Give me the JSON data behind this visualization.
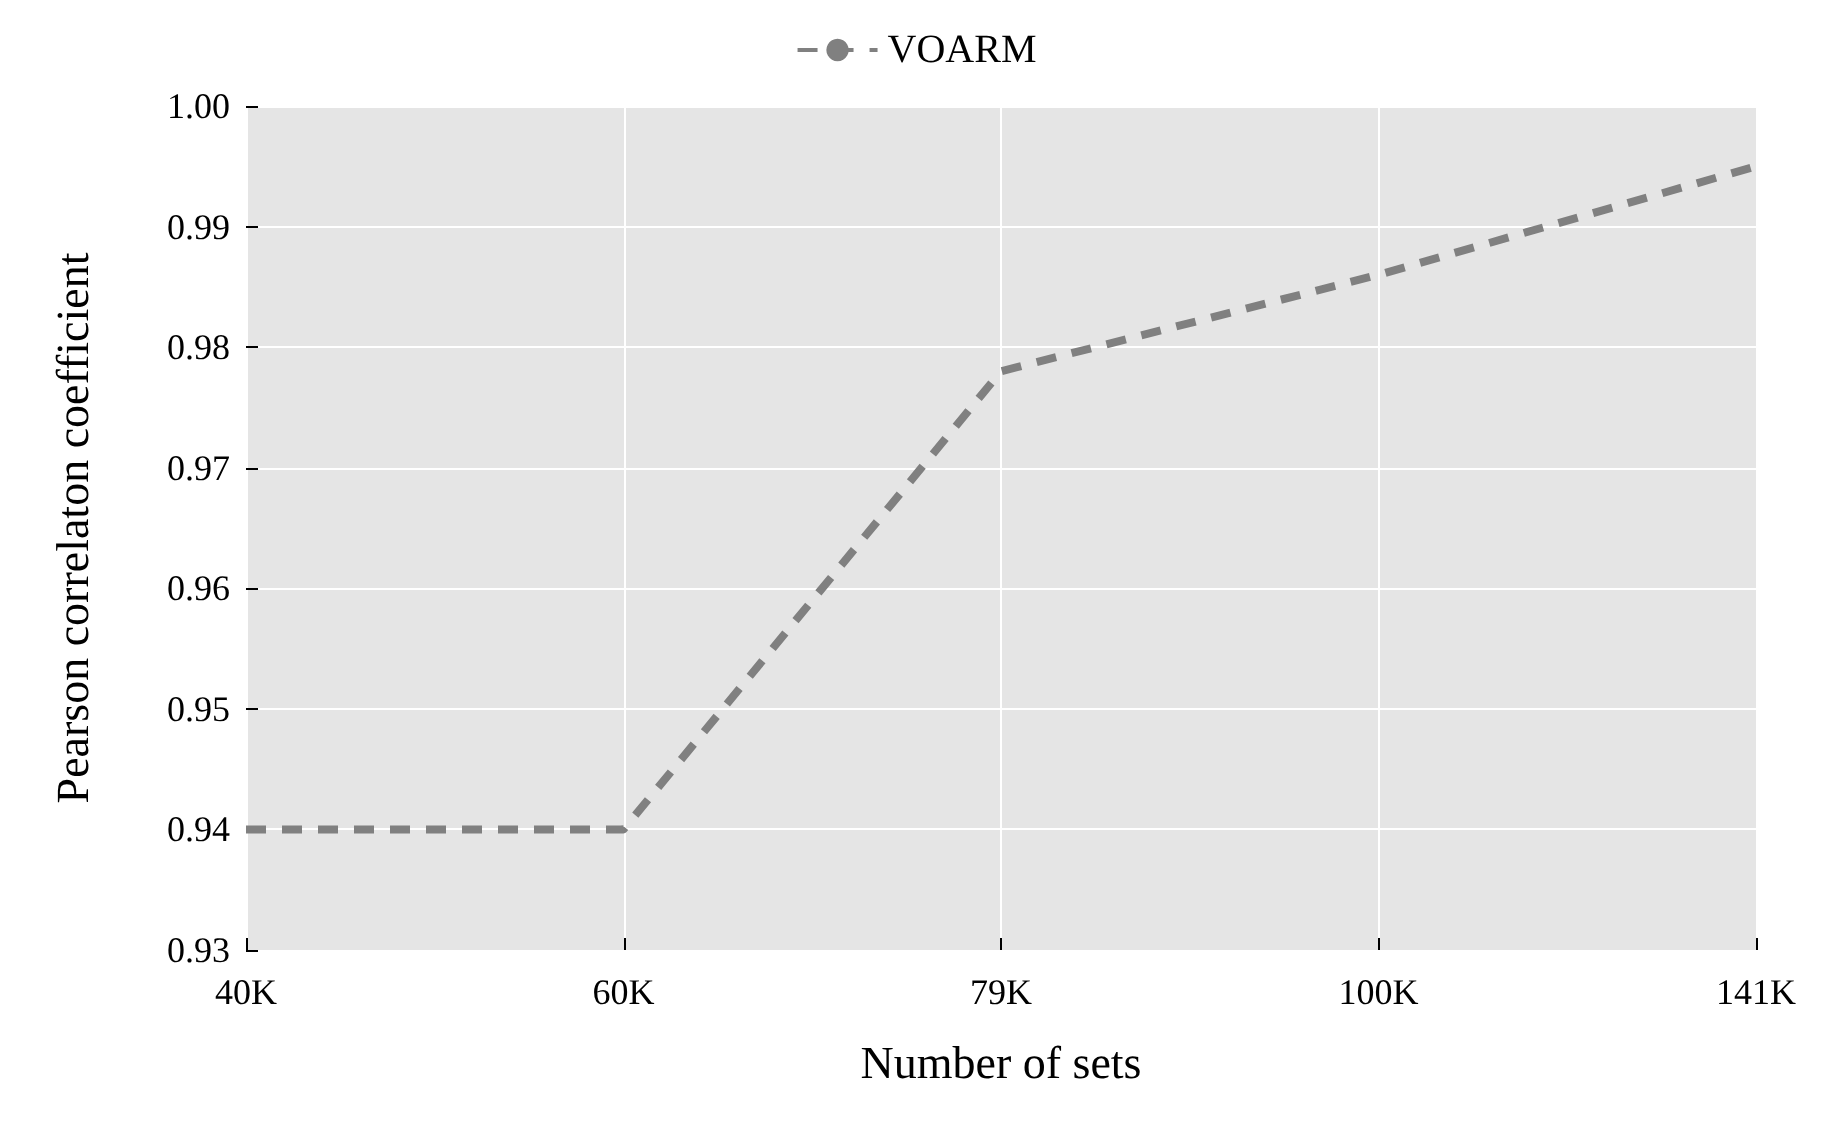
{
  "chart_data": {
    "type": "line",
    "xlabel": "Number of sets",
    "ylabel": "Pearson correlaton coefficient",
    "categories": [
      "40K",
      "60K",
      "79K",
      "100K",
      "141K"
    ],
    "series": [
      {
        "name": "VOARM",
        "color": "#808080",
        "values": [
          0.94,
          0.94,
          0.978,
          0.986,
          0.995
        ]
      }
    ],
    "ylim": [
      0.93,
      1.0
    ],
    "yticks": [
      {
        "value": 0.93,
        "label": "0.93"
      },
      {
        "value": 0.94,
        "label": "0.94"
      },
      {
        "value": 0.95,
        "label": "0.95"
      },
      {
        "value": 0.96,
        "label": "0.96"
      },
      {
        "value": 0.97,
        "label": "0.97"
      },
      {
        "value": 0.98,
        "label": "0.98"
      },
      {
        "value": 0.99,
        "label": "0.99"
      },
      {
        "value": 1.0,
        "label": "1.00"
      }
    ],
    "grid": true,
    "legend": "top",
    "line_style": "dashed",
    "marker": "none"
  }
}
